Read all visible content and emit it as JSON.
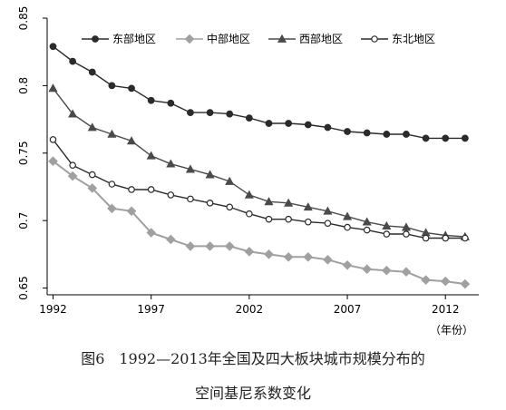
{
  "chart_data": {
    "type": "line",
    "x": [
      1992,
      1993,
      1994,
      1995,
      1996,
      1997,
      1998,
      1999,
      2000,
      2001,
      2002,
      2003,
      2004,
      2005,
      2006,
      2007,
      2008,
      2009,
      2010,
      2011,
      2012,
      2013
    ],
    "x_ticks": [
      1992,
      1997,
      2002,
      2007,
      2012
    ],
    "x_unit": "（年份）",
    "ylim": [
      0.645,
      0.85
    ],
    "y_ticks": [
      0.65,
      0.7,
      0.75,
      0.8,
      0.85
    ],
    "y_tick_labels": [
      "0.65",
      "0.7",
      "0.75",
      "0.8",
      "0.85"
    ],
    "legend_position": "top",
    "grid": false,
    "series": [
      {
        "name": "东部地区",
        "marker": "filled-circle",
        "color": "#2b2b2b",
        "values": [
          0.829,
          0.818,
          0.81,
          0.8,
          0.798,
          0.789,
          0.787,
          0.78,
          0.78,
          0.779,
          0.776,
          0.772,
          0.772,
          0.771,
          0.769,
          0.766,
          0.765,
          0.764,
          0.764,
          0.761,
          0.761,
          0.761
        ]
      },
      {
        "name": "中部地区",
        "marker": "diamond",
        "color": "#a0a0a0",
        "values": [
          0.744,
          0.733,
          0.724,
          0.709,
          0.707,
          0.691,
          0.686,
          0.681,
          0.681,
          0.681,
          0.677,
          0.675,
          0.673,
          0.673,
          0.671,
          0.667,
          0.664,
          0.663,
          0.662,
          0.656,
          0.655,
          0.653
        ]
      },
      {
        "name": "西部地区",
        "marker": "triangle",
        "color": "#4a4a4a",
        "values": [
          0.798,
          0.779,
          0.769,
          0.764,
          0.759,
          0.748,
          0.742,
          0.738,
          0.734,
          0.729,
          0.719,
          0.714,
          0.713,
          0.71,
          0.707,
          0.703,
          0.699,
          0.696,
          0.695,
          0.691,
          0.689,
          0.688
        ]
      },
      {
        "name": "东北地区",
        "marker": "open-circle",
        "color": "#2b2b2b",
        "values": [
          0.76,
          0.741,
          0.734,
          0.727,
          0.723,
          0.723,
          0.719,
          0.716,
          0.713,
          0.71,
          0.705,
          0.701,
          0.701,
          0.699,
          0.698,
          0.695,
          0.693,
          0.69,
          0.69,
          0.687,
          0.687,
          0.687
        ]
      }
    ]
  },
  "caption": {
    "line1": "图6　1992—2013年全国及四大板块城市规模分布的",
    "line2": "空间基尼系数变化"
  }
}
